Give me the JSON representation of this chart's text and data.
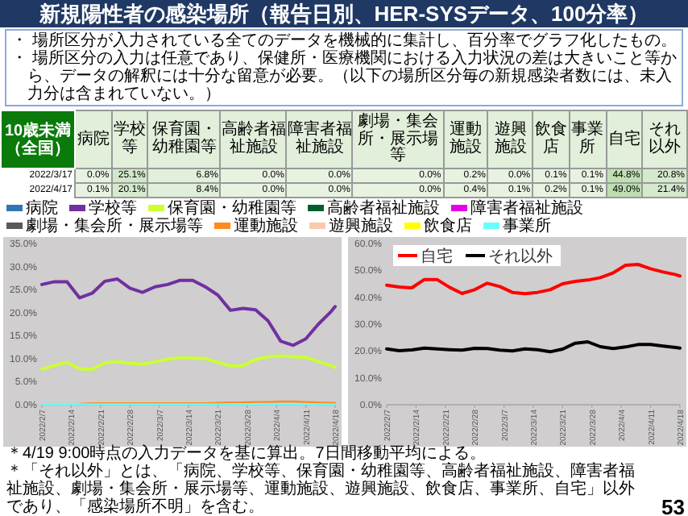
{
  "chart_data": [
    {
      "type": "heatmap",
      "title": "新規陽性者の感染場所（報告日別、HER-SYSデータ、100分率）",
      "subtitle": "10歳未満（全国）",
      "annotations": [
        "・ 場所区分が入力されている全てのデータを機械的に集計し、百分率でグラフ化したもの。",
        "・ 場所区分の入力は任意であり、保健所・医療機関における入力状況の差は大きいこと等から、データの解釈には十分な留意が必要。（以下の場所区分毎の新規感染者数には、未入力分は含まれていない。）",
        "＊4/19 9:00時点の入力データを基に算出。7日間移動平均による。",
        "＊「それ以外」とは、「病院、学校等、保育園・幼稚園等、高齢者福祉施設、障害者福祉施設、劇場・集会所・展示場等、運動施設、遊興施設、飲食店、事業所、自宅」以外であり、「感染場所不明」を含む。",
        "53"
      ],
      "categories": [
        "病院",
        "学校等",
        "保育園・幼稚園等",
        "高齢者福祉施設",
        "障害者福祉施設",
        "劇場・集会所・展示場等",
        "運動施設",
        "遊興施設",
        "飲食店",
        "事業所",
        "自宅",
        "それ以外"
      ],
      "y_categories": [
        "2022/3/17",
        "2022/4/17"
      ],
      "cells": [
        [
          0.0,
          25.1,
          6.8,
          0.0,
          0.0,
          0.0,
          0.2,
          0.0,
          0.1,
          0.1,
          44.8,
          20.8
        ],
        [
          0.1,
          20.1,
          8.4,
          0.0,
          0.0,
          0.0,
          0.4,
          0.1,
          0.2,
          0.1,
          49.0,
          21.4
        ]
      ],
      "cell_labels": [
        [
          "0.0%",
          "25.1%",
          "6.8%",
          "0.0%",
          "0.0%",
          "0.0%",
          "0.2%",
          "0.0%",
          "0.1%",
          "0.1%",
          "44.8%",
          "20.8%"
        ],
        [
          "0.1%",
          "20.1%",
          "8.4%",
          "0.0%",
          "0.0%",
          "0.0%",
          "0.4%",
          "0.1%",
          "0.2%",
          "0.1%",
          "49.0%",
          "21.4%"
        ]
      ]
    },
    {
      "type": "line",
      "x": [
        "2022-02-07",
        "2022-02-10",
        "2022-02-13",
        "2022-02-16",
        "2022-02-19",
        "2022-02-22",
        "2022-02-25",
        "2022-02-28",
        "2022-03-03",
        "2022-03-06",
        "2022-03-09",
        "2022-03-12",
        "2022-03-15",
        "2022-03-18",
        "2022-03-21",
        "2022-03-24",
        "2022-03-27",
        "2022-03-30",
        "2022-04-02",
        "2022-04-05",
        "2022-04-08",
        "2022-04-11",
        "2022-04-14",
        "2022-04-17",
        "2022-04-18"
      ],
      "xlim": [
        "2022-02-07",
        "2022-04-18"
      ],
      "xticks": [
        {
          "value": "2022-02-07",
          "label": "2022/2/7"
        },
        {
          "value": "2022-02-14",
          "label": "2022/2/14"
        },
        {
          "value": "2022-02-21",
          "label": "2022/2/21"
        },
        {
          "value": "2022-02-28",
          "label": "2022/2/28"
        },
        {
          "value": "2022-03-07",
          "label": "2022/3/7"
        },
        {
          "value": "2022-03-14",
          "label": "2022/3/14"
        },
        {
          "value": "2022-03-21",
          "label": "2022/3/21"
        },
        {
          "value": "2022-03-28",
          "label": "2022/3/28"
        },
        {
          "value": "2022-04-04",
          "label": "2022/4/4"
        },
        {
          "value": "2022-04-11",
          "label": "2022/4/11"
        },
        {
          "value": "2022-04-18",
          "label": "2022/4/18"
        }
      ],
      "ylim": [
        0,
        35
      ],
      "yticks": [
        {
          "value": 0,
          "label": "0.0%"
        },
        {
          "value": 5,
          "label": "5.0%"
        },
        {
          "value": 10,
          "label": "10.0%"
        },
        {
          "value": 15,
          "label": "15.0%"
        },
        {
          "value": 20,
          "label": "20.0%"
        },
        {
          "value": 25,
          "label": "25.0%"
        },
        {
          "value": 30,
          "label": "30.0%"
        },
        {
          "value": 35,
          "label": "35.0%"
        }
      ],
      "legend": "top",
      "series": [
        {
          "name": "病院",
          "color": "#2e75b6",
          "values": [
            null,
            null,
            null,
            null,
            null,
            null,
            null,
            null,
            null,
            null,
            null,
            null,
            null,
            null,
            null,
            null,
            null,
            null,
            null,
            null,
            null,
            null,
            null,
            null,
            null
          ]
        },
        {
          "name": "学校等",
          "color": "#7030a0",
          "values": [
            26.1,
            26.7,
            26.7,
            23.2,
            24.2,
            26.8,
            27.3,
            25.3,
            24.4,
            25.6,
            26.1,
            27.0,
            27.0,
            25.6,
            23.8,
            20.5,
            20.9,
            20.6,
            18.2,
            13.8,
            12.9,
            14.3,
            17.5,
            20.2,
            21.3
          ]
        },
        {
          "name": "保育園・幼稚園等",
          "color": "#ccff33",
          "values": [
            7.7,
            8.5,
            9.2,
            7.8,
            7.7,
            9.1,
            9.3,
            9.0,
            8.8,
            9.3,
            9.9,
            10.2,
            10.1,
            10.0,
            9.2,
            8.4,
            8.5,
            9.8,
            10.4,
            10.6,
            10.4,
            10.3,
            9.4,
            8.5,
            8.1
          ]
        },
        {
          "name": "高齢者福祉施設",
          "color": "#00602b",
          "values": [
            null,
            null,
            null,
            null,
            null,
            null,
            null,
            null,
            null,
            null,
            null,
            null,
            null,
            null,
            null,
            null,
            null,
            null,
            null,
            null,
            null,
            null,
            null,
            null,
            null
          ]
        },
        {
          "name": "障害者福祉施設",
          "color": "#e600e6",
          "values": [
            null,
            null,
            null,
            null,
            null,
            null,
            null,
            null,
            null,
            null,
            null,
            null,
            null,
            null,
            null,
            null,
            null,
            null,
            null,
            null,
            null,
            null,
            null,
            null,
            null
          ]
        },
        {
          "name": "劇場・集会所・展示場等",
          "color": "#595959",
          "values": [
            null,
            null,
            null,
            null,
            null,
            null,
            null,
            null,
            null,
            null,
            null,
            null,
            null,
            null,
            null,
            null,
            null,
            null,
            null,
            null,
            null,
            null,
            null,
            null,
            null
          ]
        },
        {
          "name": "運動施設",
          "color": "#ff8a1f",
          "values": [
            null,
            null,
            null,
            0.2,
            0.3,
            0.3,
            0.3,
            0.3,
            0.3,
            0.3,
            0.3,
            0.3,
            0.3,
            0.3,
            0.4,
            0.5,
            0.5,
            0.6,
            0.6,
            0.7,
            0.7,
            0.6,
            0.5,
            0.4,
            0.4
          ]
        },
        {
          "name": "遊興施設",
          "color": "#f8cbad",
          "values": [
            null,
            null,
            null,
            null,
            null,
            null,
            null,
            null,
            null,
            null,
            null,
            null,
            null,
            null,
            null,
            null,
            null,
            null,
            null,
            null,
            null,
            null,
            null,
            null,
            null
          ]
        },
        {
          "name": "飲食店",
          "color": "#ffff00",
          "values": [
            null,
            null,
            null,
            null,
            null,
            null,
            null,
            null,
            null,
            null,
            null,
            null,
            null,
            null,
            null,
            null,
            null,
            null,
            null,
            null,
            null,
            null,
            null,
            null,
            null
          ]
        },
        {
          "name": "事業所",
          "color": "#66ffff",
          "values": [
            0.1,
            0.1,
            0.1,
            0.1,
            0.1,
            0.1,
            0.1,
            0.1,
            0.1,
            0.1,
            0.1,
            0.1,
            0.1,
            0.1,
            0.1,
            0.1,
            0.1,
            0.1,
            0.1,
            0.1,
            0.1,
            0.1,
            0.1,
            0.1,
            0.1
          ]
        }
      ]
    },
    {
      "type": "line",
      "x": [
        "2022-02-07",
        "2022-02-10",
        "2022-02-13",
        "2022-02-16",
        "2022-02-19",
        "2022-02-22",
        "2022-02-25",
        "2022-02-28",
        "2022-03-03",
        "2022-03-06",
        "2022-03-09",
        "2022-03-12",
        "2022-03-15",
        "2022-03-18",
        "2022-03-21",
        "2022-03-24",
        "2022-03-27",
        "2022-03-30",
        "2022-04-02",
        "2022-04-05",
        "2022-04-08",
        "2022-04-11",
        "2022-04-14",
        "2022-04-17",
        "2022-04-18"
      ],
      "xlim": [
        "2022-02-07",
        "2022-04-18"
      ],
      "xticks": [
        {
          "value": "2022-02-07",
          "label": "2022/2/7"
        },
        {
          "value": "2022-02-14",
          "label": "2022/2/14"
        },
        {
          "value": "2022-02-21",
          "label": "2022/2/21"
        },
        {
          "value": "2022-02-28",
          "label": "2022/2/28"
        },
        {
          "value": "2022-03-07",
          "label": "2022/3/7"
        },
        {
          "value": "2022-03-14",
          "label": "2022/3/14"
        },
        {
          "value": "2022-03-21",
          "label": "2022/3/21"
        },
        {
          "value": "2022-03-28",
          "label": "2022/3/28"
        },
        {
          "value": "2022-04-04",
          "label": "2022/4/4"
        },
        {
          "value": "2022-04-11",
          "label": "2022/4/11"
        },
        {
          "value": "2022-04-18",
          "label": "2022/4/18"
        }
      ],
      "ylim": [
        0,
        60
      ],
      "yticks": [
        {
          "value": 0,
          "label": "0.0%"
        },
        {
          "value": 10,
          "label": "10.0%"
        },
        {
          "value": 20,
          "label": "20.0%"
        },
        {
          "value": 30,
          "label": "30.0%"
        },
        {
          "value": 40,
          "label": "40.0%"
        },
        {
          "value": 50,
          "label": "50.0%"
        },
        {
          "value": 60,
          "label": "60.0%"
        }
      ],
      "legend": "top left",
      "series": [
        {
          "name": "自宅",
          "color": "#ff0000",
          "values": [
            44.5,
            43.8,
            43.5,
            46.6,
            46.6,
            43.7,
            41.4,
            42.8,
            45.2,
            44.0,
            41.8,
            41.3,
            41.8,
            42.8,
            45.0,
            45.9,
            46.4,
            47.3,
            49.0,
            51.9,
            52.2,
            50.6,
            49.4,
            48.4,
            47.9
          ]
        },
        {
          "name": "それ以外",
          "color": "#000000",
          "values": [
            20.8,
            20.1,
            20.4,
            21.1,
            20.8,
            20.5,
            20.3,
            21.0,
            20.9,
            20.3,
            20.0,
            20.8,
            20.5,
            19.7,
            20.7,
            22.9,
            23.4,
            21.6,
            20.9,
            21.5,
            22.4,
            22.4,
            21.8,
            21.3,
            21.1
          ]
        }
      ]
    }
  ]
}
